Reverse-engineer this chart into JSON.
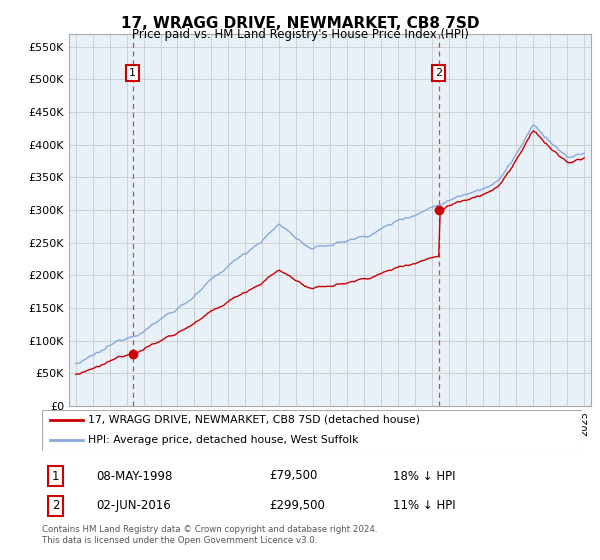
{
  "title": "17, WRAGG DRIVE, NEWMARKET, CB8 7SD",
  "subtitle": "Price paid vs. HM Land Registry's House Price Index (HPI)",
  "ylim": [
    0,
    570000
  ],
  "yticks": [
    0,
    50000,
    100000,
    150000,
    200000,
    250000,
    300000,
    350000,
    400000,
    450000,
    500000,
    550000
  ],
  "ytick_labels": [
    "£0",
    "£50K",
    "£100K",
    "£150K",
    "£200K",
    "£250K",
    "£300K",
    "£350K",
    "£400K",
    "£450K",
    "£500K",
    "£550K"
  ],
  "purchase1_year": 1998.36,
  "purchase1_price": 79500,
  "purchase2_year": 2016.42,
  "purchase2_price": 299500,
  "purchase1_date": "08-MAY-1998",
  "purchase1_hpi_diff": "18% ↓ HPI",
  "purchase2_date": "02-JUN-2016",
  "purchase2_hpi_diff": "11% ↓ HPI",
  "line_color_price": "#cc0000",
  "line_color_hpi": "#88aadd",
  "vline_color": "#dd4444",
  "marker_box_color": "#cc0000",
  "plot_bg_color": "#e8f0f8",
  "legend_label_price": "17, WRAGG DRIVE, NEWMARKET, CB8 7SD (detached house)",
  "legend_label_hpi": "HPI: Average price, detached house, West Suffolk",
  "footer": "Contains HM Land Registry data © Crown copyright and database right 2024.\nThis data is licensed under the Open Government Licence v3.0.",
  "background_color": "#ffffff",
  "grid_color": "#cccccc"
}
